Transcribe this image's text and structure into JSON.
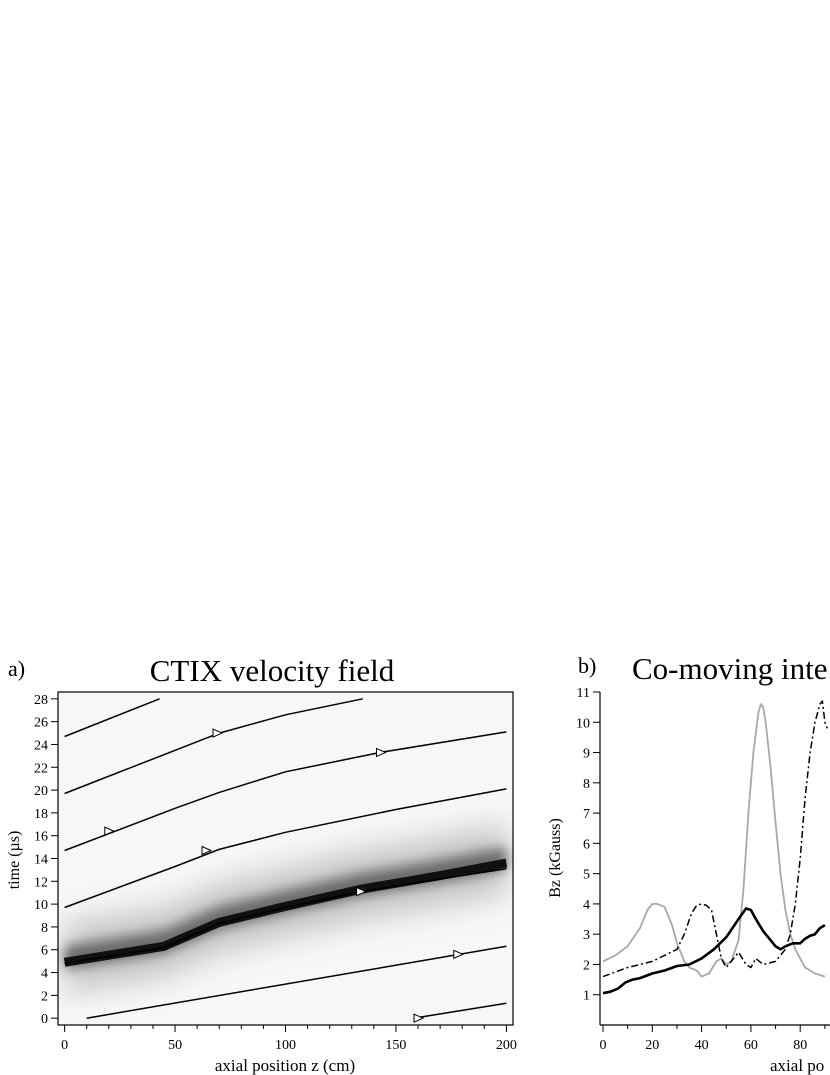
{
  "chart_data": [
    {
      "panel_label": "a)",
      "type": "heatmap",
      "title": "CTIX velocity field",
      "xlabel": "axial position z (cm)",
      "ylabel": "time (µs)",
      "xlim": [
        -3,
        203
      ],
      "ylim": [
        -0.6,
        28.6
      ],
      "x_ticks": [
        0,
        50,
        100,
        150,
        200
      ],
      "y_ticks": [
        0,
        2,
        4,
        6,
        8,
        10,
        12,
        14,
        16,
        18,
        20,
        22,
        24,
        26,
        28
      ],
      "colormap": "grayscale",
      "grid": false,
      "trajectories": [
        {
          "points": [
            [
              0,
              24.7
            ],
            [
              43,
              28
            ]
          ]
        },
        {
          "points": [
            [
              0,
              19.7
            ],
            [
              70,
              25
            ],
            [
              100,
              26.6
            ],
            [
              135,
              28
            ]
          ],
          "arrow_at": [
            69,
            25
          ]
        },
        {
          "points": [
            [
              0,
              14.7
            ],
            [
              50,
              18.4
            ],
            [
              70,
              19.8
            ],
            [
              100,
              21.6
            ],
            [
              143,
              23.3
            ],
            [
              200,
              25.1
            ]
          ],
          "arrow_at": [
            143,
            23.3
          ]
        },
        {
          "points": [
            [
              0,
              9.7
            ],
            [
              50,
              13.3
            ],
            [
              70,
              14.8
            ],
            [
              100,
              16.3
            ],
            [
              150,
              18.3
            ],
            [
              200,
              20.1
            ]
          ],
          "arrow_at": [
            20,
            16.4
          ]
        },
        {
          "points": [
            [
              0,
              4.8
            ],
            [
              45,
              6.2
            ],
            [
              70,
              8.3
            ],
            [
              100,
              9.7
            ],
            [
              134,
              11.1
            ],
            [
              170,
              12.2
            ],
            [
              200,
              13.1
            ]
          ],
          "arrow_at": [
            64,
            14.7
          ]
        },
        {
          "points": [
            [
              10,
              0
            ],
            [
              200,
              6.3
            ]
          ],
          "arrow_at": [
            134,
            11.1
          ]
        },
        {
          "points": [
            [
              158,
              0
            ],
            [
              200,
              1.3
            ]
          ],
          "arrow_at": [
            178,
            5.6
          ]
        }
      ],
      "extra_arrows": [
        [
          160,
          0
        ]
      ],
      "intensity_band": {
        "points": [
          [
            0,
            4.9
          ],
          [
            45,
            6.3
          ],
          [
            70,
            8.4
          ],
          [
            100,
            9.8
          ],
          [
            134,
            11.3
          ],
          [
            170,
            12.5
          ],
          [
            200,
            13.6
          ]
        ]
      }
    },
    {
      "panel_label": "b)",
      "type": "line",
      "title": "Co-moving inte",
      "xlabel": "axial po",
      "ylabel": "Bz  (kGauss)",
      "xlim": [
        -1,
        92
      ],
      "ylim": [
        0,
        11
      ],
      "x_ticks": [
        0,
        20,
        40,
        60,
        80
      ],
      "y_ticks": [
        1,
        2,
        3,
        4,
        5,
        6,
        7,
        8,
        9,
        10,
        11
      ],
      "series": [
        {
          "style": "solid-gray",
          "color": "#a8a8a8",
          "x": [
            0,
            5,
            10,
            15,
            18,
            20,
            22,
            25,
            28,
            30,
            33,
            35,
            38,
            40,
            43,
            46,
            48,
            50,
            52,
            55,
            57,
            59,
            61,
            63,
            64,
            65,
            66,
            68,
            70,
            72,
            74,
            76,
            78,
            80,
            82,
            84,
            86,
            88,
            90
          ],
          "y": [
            2.1,
            2.3,
            2.6,
            3.2,
            3.8,
            4.0,
            4.0,
            3.9,
            3.3,
            2.7,
            2.1,
            1.9,
            1.8,
            1.6,
            1.7,
            2.1,
            2.2,
            2.0,
            2.1,
            2.8,
            4.5,
            7.0,
            9.0,
            10.3,
            10.6,
            10.5,
            10.0,
            8.5,
            6.7,
            5.0,
            3.8,
            3.0,
            2.5,
            2.2,
            1.9,
            1.8,
            1.7,
            1.65,
            1.6
          ]
        },
        {
          "style": "dash-dot-black",
          "color": "#000000",
          "x": [
            0,
            5,
            10,
            15,
            20,
            25,
            30,
            33,
            36,
            38,
            40,
            42,
            44,
            46,
            48,
            50,
            52,
            55,
            58,
            60,
            62,
            65,
            70,
            74,
            76,
            78,
            80,
            82,
            84,
            86,
            88,
            89,
            90,
            91
          ],
          "y": [
            1.6,
            1.75,
            1.9,
            2.0,
            2.1,
            2.3,
            2.5,
            3.0,
            3.7,
            3.95,
            4.0,
            3.95,
            3.8,
            3.0,
            2.2,
            1.9,
            2.1,
            2.4,
            2.0,
            1.9,
            2.2,
            2.0,
            2.1,
            2.5,
            3.0,
            4.0,
            5.5,
            7.5,
            9.0,
            10.0,
            10.6,
            10.7,
            10.0,
            9.8
          ]
        },
        {
          "style": "solid-black-thick",
          "color": "#000000",
          "x": [
            0,
            3,
            6,
            9,
            12,
            15,
            20,
            25,
            30,
            35,
            40,
            45,
            50,
            55,
            58,
            60,
            62,
            65,
            68,
            70,
            72,
            74,
            77,
            80,
            82,
            84,
            86,
            88,
            90
          ],
          "y": [
            1.05,
            1.1,
            1.2,
            1.4,
            1.5,
            1.55,
            1.7,
            1.8,
            1.95,
            2.0,
            2.2,
            2.5,
            2.9,
            3.5,
            3.85,
            3.8,
            3.5,
            3.1,
            2.8,
            2.6,
            2.5,
            2.6,
            2.7,
            2.7,
            2.85,
            2.95,
            3.0,
            3.2,
            3.3
          ]
        }
      ]
    }
  ]
}
